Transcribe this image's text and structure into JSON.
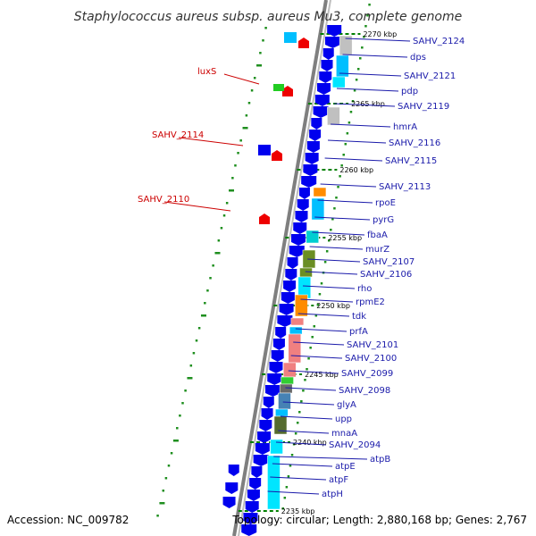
{
  "title": "Staphylococcus aureus subsp. aureus Mu3, complete genome",
  "accession": "Accession: NC_009782",
  "topology": "Topology: circular; Length: 2,880,168 bp; Genes: 2,767",
  "colors": {
    "blue_gene": "#0000ee",
    "red_gene": "#ee0000",
    "backbone": "#808080",
    "tick": "#008000",
    "label_blue": "#1a1aaa",
    "label_red": "#cc0000"
  },
  "kbp_ticks": [
    "2270 kbp",
    "2265 kbp",
    "2260 kbp",
    "2255 kbp",
    "2250 kbp",
    "2245 kbp",
    "2240 kbp",
    "2235 kbp"
  ],
  "right_labels": [
    "SAHV_2124",
    "dps",
    "SAHV_2121",
    "pdp",
    "SAHV_2119",
    "hmrA",
    "SAHV_2116",
    "SAHV_2115",
    "SAHV_2113",
    "rpoE",
    "pyrG",
    "fbaA",
    "murZ",
    "SAHV_2107",
    "SAHV_2106",
    "rho",
    "rpmE2",
    "tdk",
    "prfA",
    "SAHV_2101",
    "SAHV_2100",
    "SAHV_2099",
    "SAHV_2098",
    "glyA",
    "upp",
    "mnaA",
    "SAHV_2094",
    "atpB",
    "atpE",
    "atpF",
    "atpH"
  ],
  "left_labels": [
    "luxS",
    "SAHV_2114",
    "SAHV_2110"
  ]
}
